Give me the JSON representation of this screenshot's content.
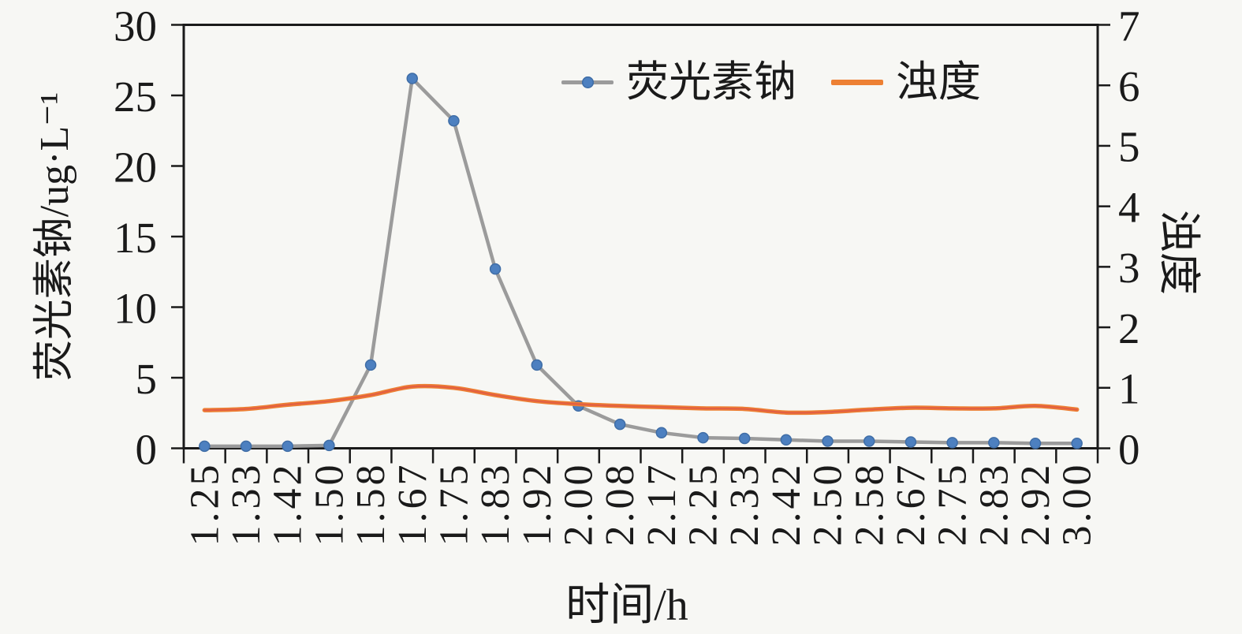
{
  "chart_data": {
    "type": "line",
    "title": "",
    "xlabel": "时间/h",
    "x_categories": [
      "1.25",
      "1.33",
      "1.42",
      "1.50",
      "1.58",
      "1.67",
      "1.75",
      "1.83",
      "1.92",
      "2.00",
      "2.08",
      "2.17",
      "2.25",
      "2.33",
      "2.42",
      "2.50",
      "2.58",
      "2.67",
      "2.75",
      "2.83",
      "2.92",
      "3.00"
    ],
    "left_axis": {
      "label": "荧光素钠/ug·L⁻¹",
      "min": 0,
      "max": 30,
      "ticks": [
        0,
        5,
        10,
        15,
        20,
        25,
        30
      ]
    },
    "right_axis": {
      "label": "浊度",
      "min": 0,
      "max": 7,
      "ticks": [
        0,
        1,
        2,
        3,
        4,
        5,
        6,
        7
      ]
    },
    "grid": false,
    "legend_position": "top-right-inside",
    "series": [
      {
        "name": "荧光素钠",
        "axis": "left",
        "style": "straight-line-with-markers",
        "values": [
          0.15,
          0.15,
          0.15,
          0.2,
          5.9,
          26.2,
          23.2,
          12.7,
          5.9,
          3.0,
          1.7,
          1.1,
          0.75,
          0.7,
          0.6,
          0.5,
          0.5,
          0.45,
          0.4,
          0.4,
          0.35,
          0.35
        ]
      },
      {
        "name": "浊度",
        "axis": "right",
        "style": "smooth-line",
        "values": [
          0.63,
          0.65,
          0.72,
          0.78,
          0.88,
          1.02,
          1.0,
          0.88,
          0.78,
          0.73,
          0.7,
          0.68,
          0.66,
          0.65,
          0.59,
          0.6,
          0.64,
          0.67,
          0.66,
          0.66,
          0.7,
          0.64
        ]
      }
    ]
  },
  "colors": {
    "background": "#f7f7f4",
    "axis": "#1a1a1a",
    "text": "#1a1a1a",
    "fluorescein_line": "#9b9b9b",
    "fluorescein_marker": "#4d80c0",
    "fluorescein_marker_edge": "#3f6da6",
    "turbidity_line": "#ed8033",
    "turbidity_core": "#e05a45"
  }
}
